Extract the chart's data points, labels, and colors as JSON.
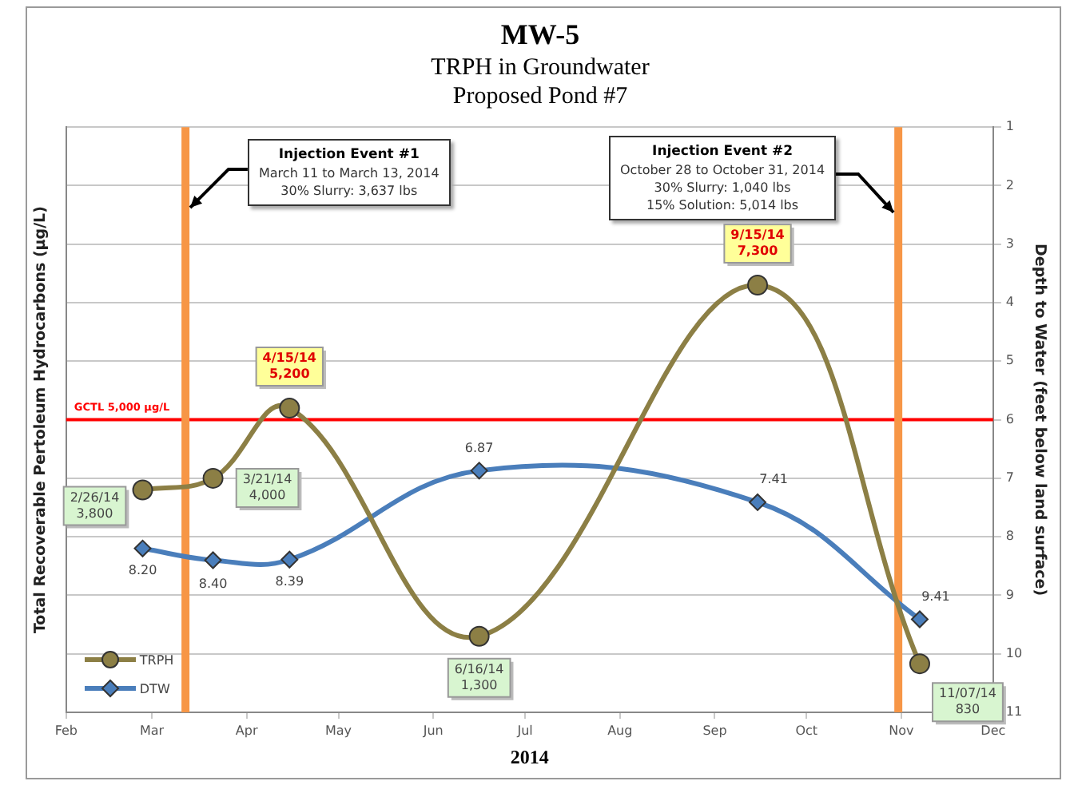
{
  "chart_data": {
    "type": "line",
    "title": "MW-5",
    "subtitle": "TRPH in Groundwater\nProposed Pond #7",
    "xlabel": "2014",
    "ylabel": "Total Recoverable Pertoleum Hydrocarbons (µg/L)",
    "y2label": "Depth to Water (feet below land surface)",
    "annotations": [
      "Injection Event #1\nMarch 11 to March 13, 2014\n30% Slurry: 3,637 lbs",
      "Injection Event #2\nOctober 28 to October 31, 2014\n30% Slurry: 1,040 lbs\n15% Solution: 5,014 lbs"
    ],
    "xlim": [
      "2014-02-01",
      "2014-12-01"
    ],
    "xticks": [
      {
        "value": "2014-02-01",
        "label": "Feb"
      },
      {
        "value": "2014-03-01",
        "label": "Mar"
      },
      {
        "value": "2014-04-01",
        "label": "Apr"
      },
      {
        "value": "2014-05-01",
        "label": "May"
      },
      {
        "value": "2014-06-01",
        "label": "Jun"
      },
      {
        "value": "2014-07-01",
        "label": "Jul"
      },
      {
        "value": "2014-08-01",
        "label": "Aug"
      },
      {
        "value": "2014-09-01",
        "label": "Sep"
      },
      {
        "value": "2014-10-01",
        "label": "Oct"
      },
      {
        "value": "2014-11-01",
        "label": "Nov"
      },
      {
        "value": "2014-12-01",
        "label": "Dec"
      }
    ],
    "ylim": [
      0,
      10000
    ],
    "y2lim": [
      11,
      1
    ],
    "y2ticks": [
      1,
      2,
      3,
      4,
      5,
      6,
      7,
      8,
      9,
      10,
      11
    ],
    "series": [
      {
        "name": "TRPH",
        "color": "#8c7f45",
        "marker": "circle",
        "x": [
          "2014-02-26",
          "2014-03-21",
          "2014-04-15",
          "2014-06-16",
          "2014-09-15",
          "2014-11-07"
        ],
        "values": [
          3800,
          4000,
          5200,
          1300,
          7300,
          830
        ],
        "value_labels": [
          "2/26/14\n3,800",
          "3/21/14\n4,000",
          "4/15/14\n5,200",
          "6/16/14\n1,300",
          "9/15/14\n7,300",
          "11/07/14\n830"
        ]
      },
      {
        "name": "DTW",
        "color": "#4a7ebb",
        "marker": "diamond",
        "axis": "y2",
        "x": [
          "2014-02-26",
          "2014-03-21",
          "2014-04-15",
          "2014-06-16",
          "2014-09-15",
          "2014-11-07"
        ],
        "values": [
          8.2,
          8.4,
          8.39,
          6.87,
          7.41,
          9.41
        ],
        "value_labels": [
          "8.20",
          "8.40",
          "8.39",
          "6.87",
          "7.41",
          "9.41"
        ]
      }
    ],
    "ref_lines": [
      {
        "axis": "y",
        "value": 5000,
        "label": "GCTL 5,000 µg/L",
        "color": "#ff0000"
      },
      {
        "axis": "x",
        "value": "2014-03-12",
        "color": "#f79646"
      },
      {
        "axis": "x",
        "value": "2014-10-31",
        "color": "#f79646"
      }
    ],
    "grid": "y",
    "legend": "bottom left"
  }
}
